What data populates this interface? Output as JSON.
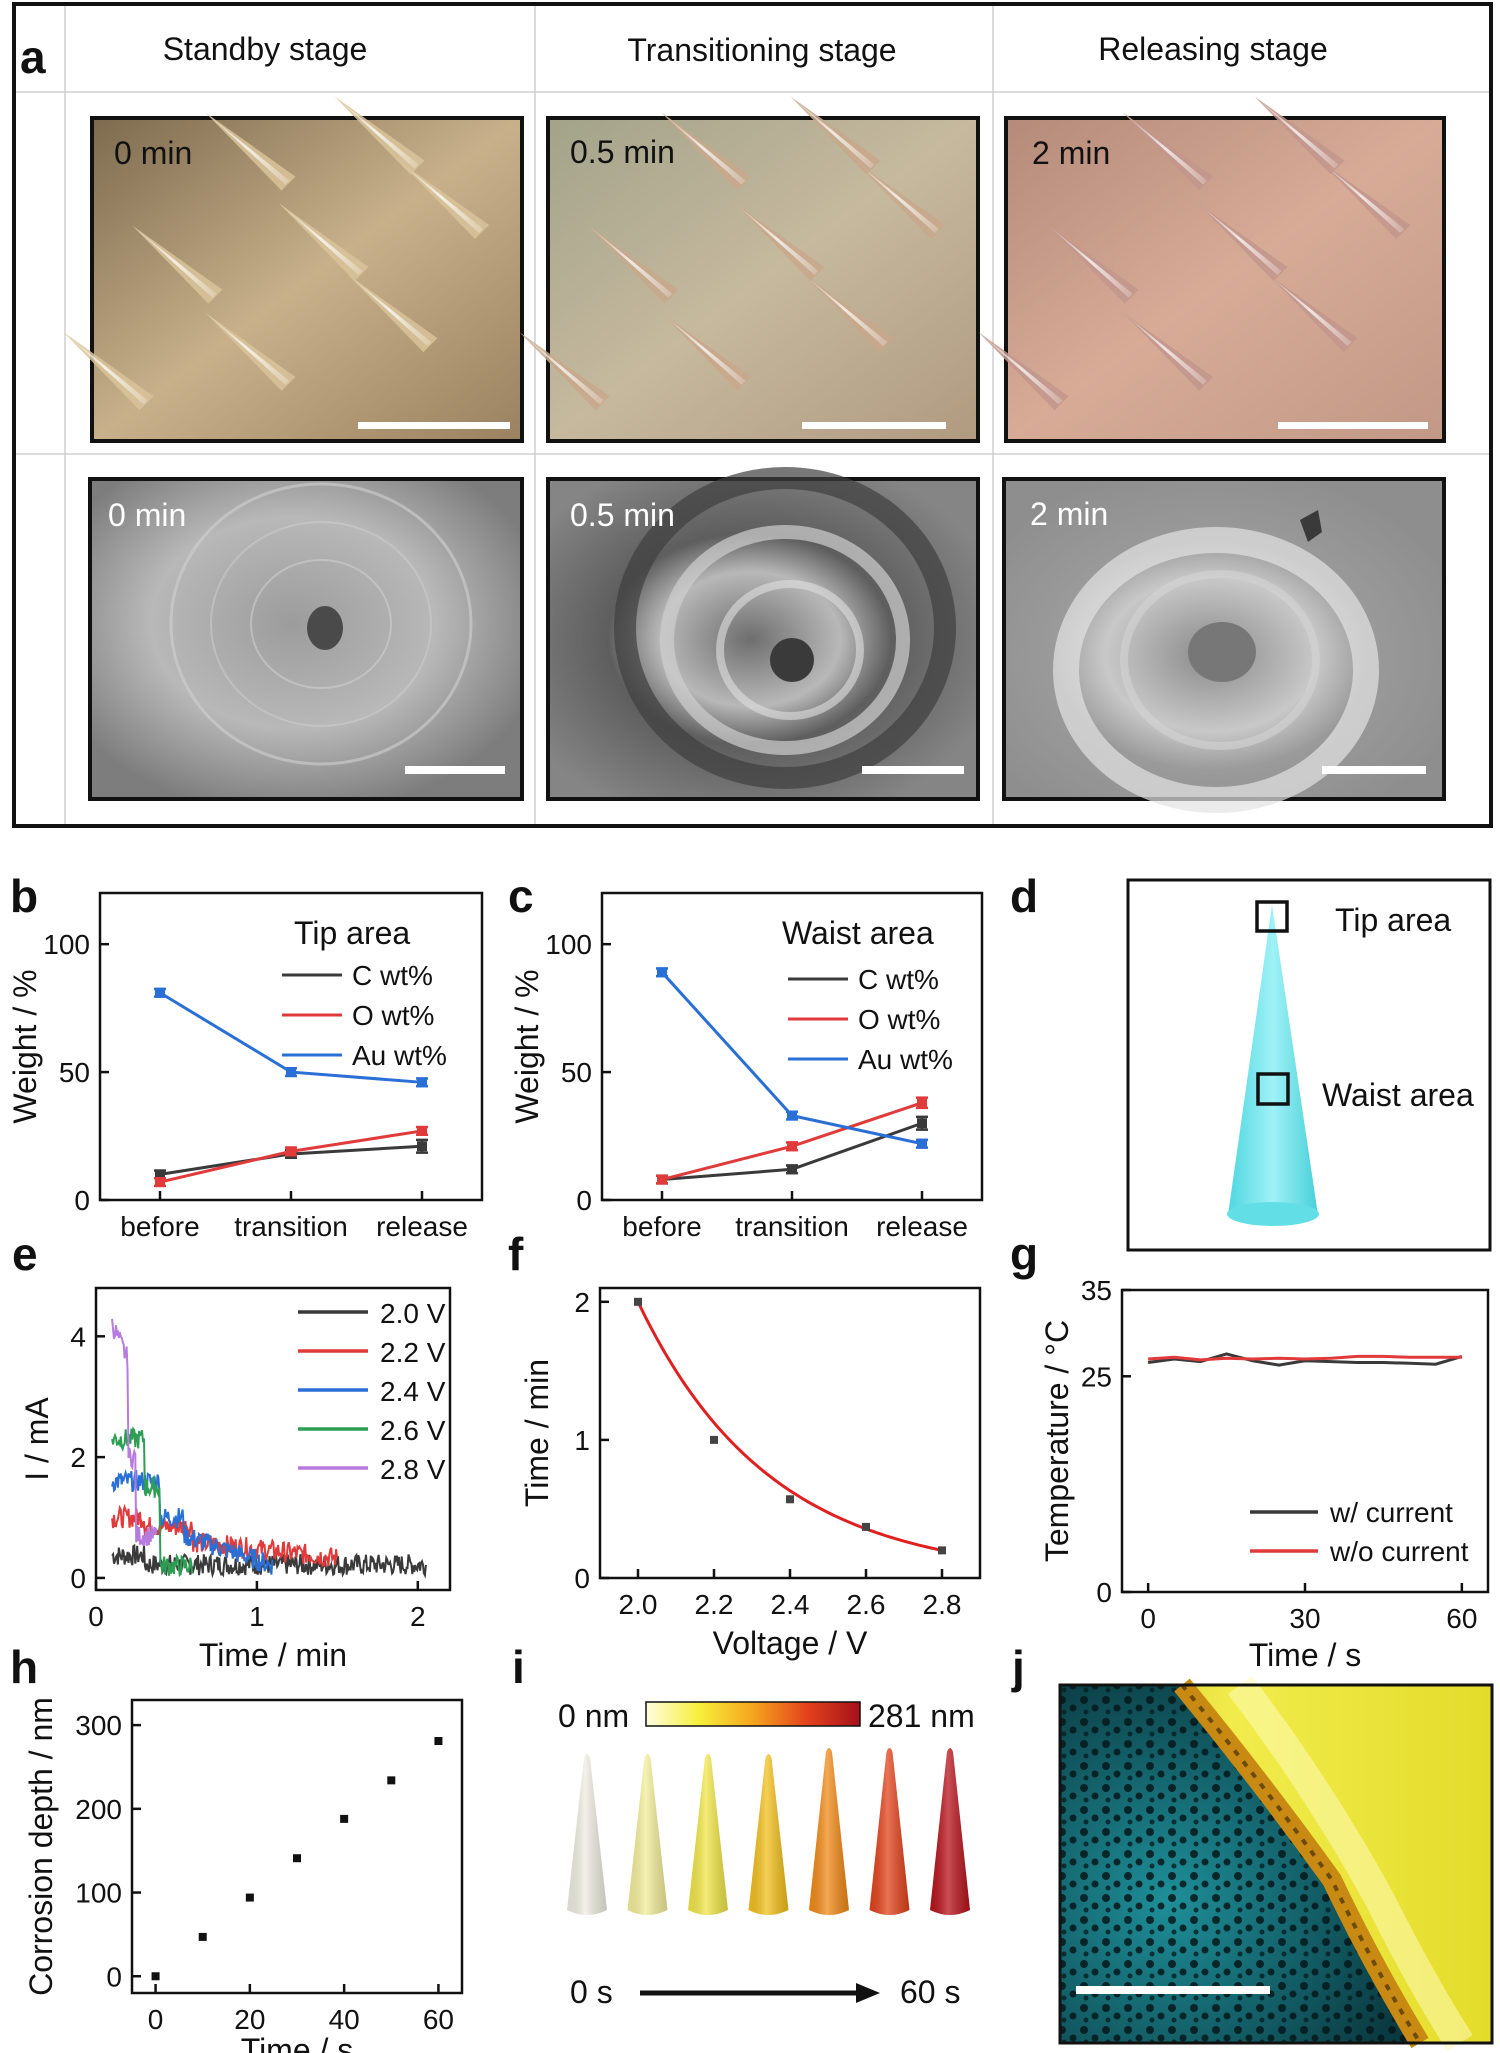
{
  "panel_letters": [
    "a",
    "b",
    "c",
    "d",
    "e",
    "f",
    "g",
    "h",
    "i",
    "j"
  ],
  "panel_a": {
    "headers": [
      "Standby stage",
      "Transitioning stage",
      "Releasing stage"
    ],
    "time_labels": [
      "0 min",
      "0.5 min",
      "2 min"
    ]
  },
  "chart_data": [
    {
      "type": "line",
      "panel": "b",
      "annotation": "Tip area",
      "ylabel": "Weight / %",
      "categories": [
        "before",
        "transition",
        "release"
      ],
      "yticks": [
        0,
        50,
        100
      ],
      "ylim": [
        0,
        120
      ],
      "series": [
        {
          "name": "C wt%",
          "color": "#3a3a3a",
          "values": [
            10,
            18,
            21
          ],
          "errors": [
            1.5,
            1.5,
            2.5
          ]
        },
        {
          "name": "O wt%",
          "color": "#e03a3a",
          "values": [
            7,
            19,
            27
          ],
          "errors": [
            1.5,
            1.5,
            1.5
          ]
        },
        {
          "name": "Au wt%",
          "color": "#2a6fd6",
          "values": [
            81,
            50,
            46
          ],
          "errors": [
            1.5,
            1.5,
            1.5
          ]
        }
      ]
    },
    {
      "type": "line",
      "panel": "c",
      "annotation": "Waist area",
      "ylabel": "Weight / %",
      "categories": [
        "before",
        "transition",
        "release"
      ],
      "yticks": [
        0,
        50,
        100
      ],
      "ylim": [
        0,
        120
      ],
      "series": [
        {
          "name": "C wt%",
          "color": "#3a3a3a",
          "values": [
            8,
            12,
            30
          ],
          "errors": [
            1.5,
            1.5,
            2.5
          ]
        },
        {
          "name": "O wt%",
          "color": "#e03a3a",
          "values": [
            8,
            21,
            38
          ],
          "errors": [
            1.5,
            1.5,
            2
          ]
        },
        {
          "name": "Au wt%",
          "color": "#2a6fd6",
          "values": [
            89,
            33,
            22
          ],
          "errors": [
            1.5,
            1.5,
            1.5
          ]
        }
      ]
    },
    {
      "type": "line",
      "panel": "e",
      "xlabel": "Time / min",
      "ylabel": "I / mA",
      "xticks": [
        0,
        1,
        2
      ],
      "yticks": [
        0,
        2,
        4
      ],
      "xlim": [
        0,
        2.2
      ],
      "ylim": [
        -0.2,
        4.8
      ],
      "series": [
        {
          "name": "2.0 V",
          "color": "#3a3a3a"
        },
        {
          "name": "2.2 V",
          "color": "#e03a3a"
        },
        {
          "name": "2.4 V",
          "color": "#2a6fd6"
        },
        {
          "name": "2.6 V",
          "color": "#2e9e55"
        },
        {
          "name": "2.8 V",
          "color": "#b77be0"
        }
      ]
    },
    {
      "type": "line",
      "panel": "f",
      "xlabel": "Voltage / V",
      "ylabel": "Time / min",
      "xticks": [
        2.0,
        2.2,
        2.4,
        2.6,
        2.8
      ],
      "yticks": [
        0,
        1,
        2
      ],
      "xlim": [
        1.9,
        2.9
      ],
      "ylim": [
        0,
        2.1
      ],
      "x": [
        2.0,
        2.2,
        2.4,
        2.6,
        2.8
      ],
      "y": [
        2.0,
        1.0,
        0.57,
        0.37,
        0.2
      ],
      "color": "#e02020"
    },
    {
      "type": "line",
      "panel": "g",
      "xlabel": "Time / s",
      "ylabel": "Temperature / °C",
      "xticks": [
        0,
        30,
        60
      ],
      "yticks": [
        0,
        25,
        35
      ],
      "xlim": [
        -5,
        65
      ],
      "ylim": [
        0,
        35
      ],
      "series": [
        {
          "name": "w/ current",
          "color": "#3a3a3a",
          "x": [
            0,
            5,
            10,
            15,
            20,
            25,
            30,
            35,
            40,
            45,
            50,
            55,
            60
          ],
          "y": [
            26.6,
            27.0,
            26.7,
            27.6,
            26.8,
            26.3,
            26.8,
            26.7,
            26.6,
            26.6,
            26.5,
            26.4,
            27.3
          ]
        },
        {
          "name": "w/o current",
          "color": "#e03a3a",
          "x": [
            0,
            5,
            10,
            15,
            20,
            25,
            30,
            35,
            40,
            45,
            50,
            55,
            60
          ],
          "y": [
            27.0,
            27.2,
            26.9,
            27.1,
            27.0,
            27.1,
            27.0,
            27.1,
            27.3,
            27.3,
            27.2,
            27.2,
            27.2
          ]
        }
      ]
    },
    {
      "type": "scatter",
      "panel": "h",
      "xlabel": "Time / s",
      "ylabel": "Corrosion depth / nm",
      "xticks": [
        0,
        20,
        40,
        60
      ],
      "yticks": [
        0,
        100,
        200,
        300
      ],
      "xlim": [
        -5,
        65
      ],
      "ylim": [
        -20,
        330
      ],
      "x": [
        0,
        10,
        20,
        30,
        40,
        50,
        60
      ],
      "y": [
        0,
        47,
        94,
        141,
        188,
        234,
        281
      ]
    },
    {
      "type": "heatmap",
      "panel": "i",
      "min_label": "0 nm",
      "max_label": "281 nm",
      "start_label": "0 s",
      "end_label": "60 s",
      "cone_colors": [
        "#efeee2",
        "#f3ee9a",
        "#f2e64a",
        "#f3c01e",
        "#f28a18",
        "#e3431c",
        "#b8141c"
      ]
    }
  ],
  "panel_d": {
    "tip_label": "Tip area",
    "waist_label": "Waist area"
  }
}
